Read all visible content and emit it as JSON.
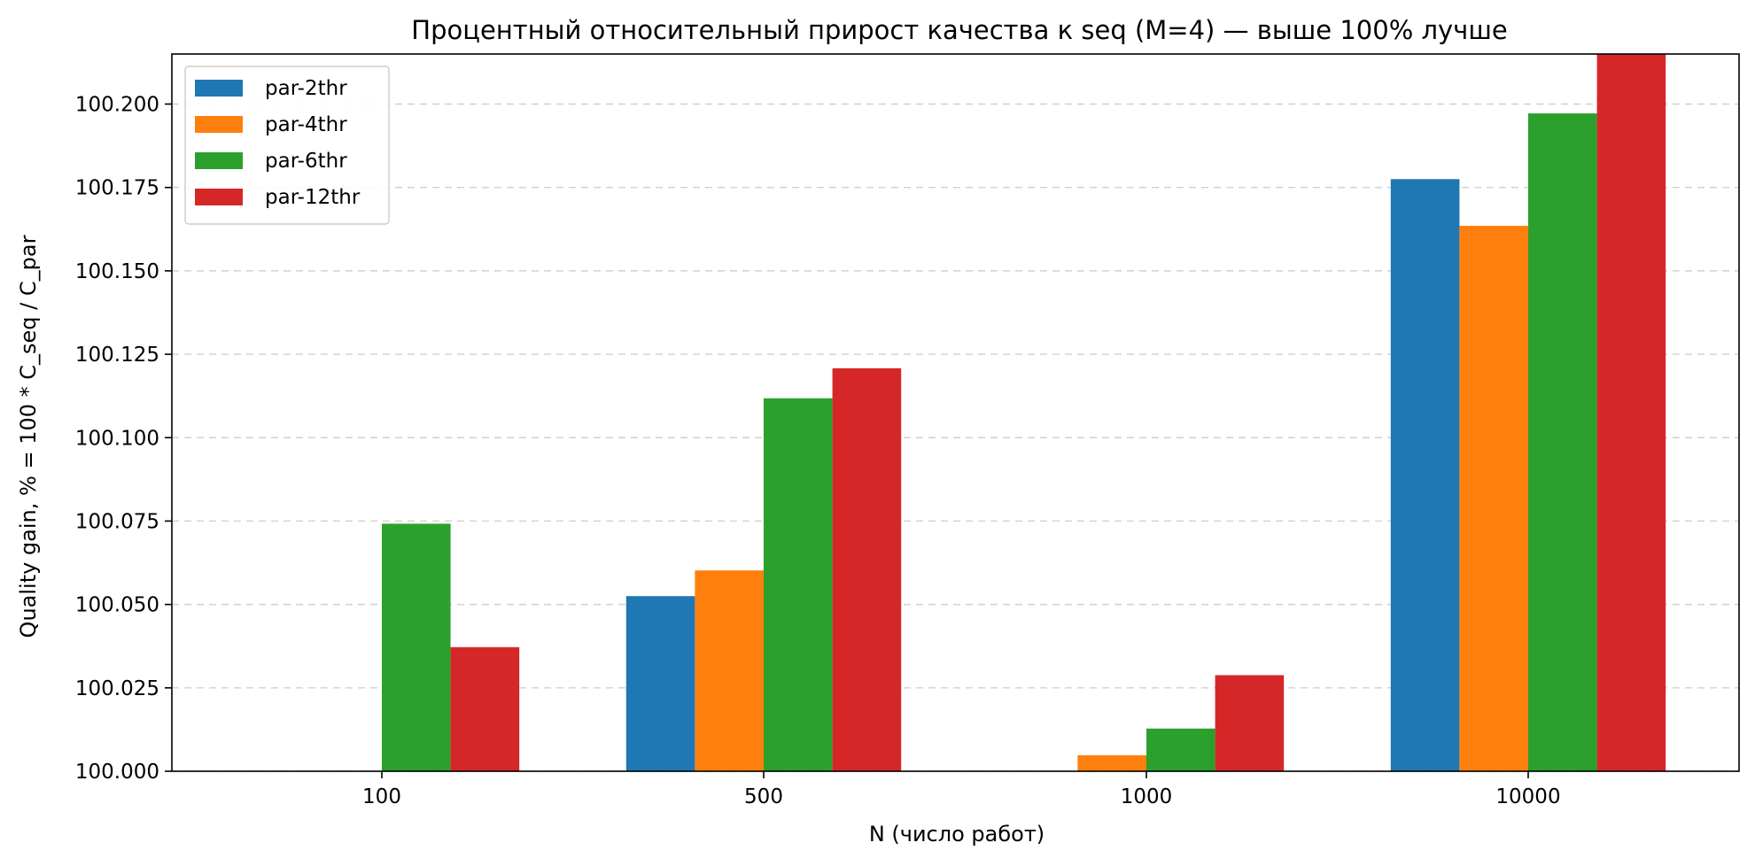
{
  "chart_data": {
    "type": "bar",
    "title": "Процентный относительный прирост качества к seq (M=4) — выше 100% лучше",
    "xlabel": "N (число работ)",
    "ylabel": "Quality gain, % = 100 * C_seq / C_par",
    "categories": [
      "100",
      "500",
      "1000",
      "10000"
    ],
    "series": [
      {
        "name": "par-2thr",
        "color": "#1f77b4",
        "values": [
          100.0,
          100.0525,
          100.0,
          100.1775
        ]
      },
      {
        "name": "par-4thr",
        "color": "#ff7f0e",
        "values": [
          100.0,
          100.0602,
          100.0048,
          100.1635
        ]
      },
      {
        "name": "par-6thr",
        "color": "#2ca02c",
        "values": [
          100.0742,
          100.1118,
          100.0128,
          100.1972
        ]
      },
      {
        "name": "par-12thr",
        "color": "#d62728",
        "values": [
          100.0372,
          100.1208,
          100.0288,
          100.215
        ]
      }
    ],
    "ylim": [
      100.0,
      100.215
    ],
    "yticks": [
      "100.000",
      "100.025",
      "100.050",
      "100.075",
      "100.100",
      "100.125",
      "100.150",
      "100.175",
      "100.200"
    ],
    "ytick_values": [
      100.0,
      100.025,
      100.05,
      100.075,
      100.1,
      100.125,
      100.15,
      100.175,
      100.2
    ],
    "grid": "y-dashed",
    "legend_position": "top-left"
  }
}
